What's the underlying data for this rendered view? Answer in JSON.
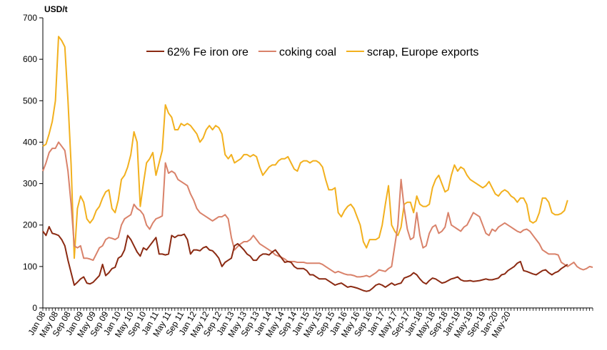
{
  "chart_data": {
    "type": "line",
    "unit_label": "USD/t",
    "ylim": [
      0,
      700
    ],
    "yticks": [
      0,
      100,
      200,
      300,
      400,
      500,
      600,
      700
    ],
    "grid": false,
    "legend_position": "top-center",
    "x_start": "Jan 08",
    "x_tick_labels": [
      "Jan 08",
      "May 08",
      "Sep 08",
      "Jan 09",
      "May 09",
      "Sep 09",
      "Jan 10",
      "May 10",
      "Sep 10",
      "Jan 11",
      "May 11",
      "Sep 11",
      "Jan 12",
      "May 12",
      "Sep 12",
      "Jan 13",
      "May 13",
      "Sep 13",
      "Jan 14",
      "May 14",
      "Sep 14",
      "Jan 15",
      "May 15",
      "Sep 15",
      "Jan 16",
      "May 16",
      "Sep 16",
      "Jan 17",
      "May-17",
      "Sep-17",
      "Jan-18",
      "May-18",
      "Sep-18",
      "Jan-19",
      "May-19",
      "Sep-19",
      "Jan-20",
      "May-20"
    ],
    "series": [
      {
        "name": "62% Fe iron ore",
        "color": "#8b2a12",
        "values": [
          185,
          175,
          196,
          180,
          178,
          175,
          165,
          150,
          115,
          85,
          55,
          62,
          70,
          75,
          60,
          58,
          62,
          70,
          78,
          105,
          78,
          85,
          95,
          98,
          120,
          125,
          140,
          175,
          165,
          150,
          135,
          125,
          145,
          140,
          150,
          160,
          170,
          130,
          130,
          128,
          130,
          175,
          170,
          175,
          175,
          178,
          165,
          130,
          140,
          140,
          138,
          145,
          148,
          140,
          138,
          130,
          120,
          100,
          110,
          115,
          120,
          150,
          155,
          148,
          140,
          130,
          125,
          115,
          115,
          125,
          130,
          130,
          128,
          135,
          140,
          130,
          120,
          110,
          112,
          110,
          100,
          95,
          95,
          95,
          90,
          80,
          80,
          75,
          70,
          70,
          70,
          65,
          60,
          55,
          58,
          60,
          55,
          50,
          52,
          50,
          48,
          45,
          42,
          40,
          42,
          48,
          55,
          58,
          55,
          50,
          55,
          60,
          55,
          58,
          60,
          72,
          75,
          78,
          85,
          80,
          70,
          62,
          58,
          66,
          72,
          70,
          65,
          60,
          62,
          66,
          70,
          72,
          75,
          68,
          65,
          65,
          66,
          64,
          65,
          66,
          68,
          70,
          68,
          68,
          70,
          72,
          80,
          82,
          90,
          95,
          100,
          108,
          112,
          90,
          88,
          85,
          82,
          80,
          85,
          90,
          92,
          85,
          80,
          85,
          88,
          95,
          100,
          105
        ]
      },
      {
        "name": "coking coal",
        "color": "#d9826a",
        "values": [
          330,
          350,
          375,
          385,
          385,
          400,
          390,
          380,
          330,
          250,
          150,
          145,
          150,
          120,
          120,
          118,
          115,
          130,
          145,
          150,
          165,
          170,
          168,
          165,
          170,
          200,
          215,
          220,
          225,
          250,
          240,
          235,
          225,
          200,
          190,
          205,
          215,
          218,
          222,
          350,
          325,
          330,
          325,
          310,
          305,
          300,
          295,
          275,
          260,
          240,
          230,
          225,
          220,
          215,
          210,
          215,
          220,
          220,
          225,
          215,
          170,
          140,
          148,
          155,
          160,
          160,
          165,
          175,
          165,
          155,
          150,
          145,
          140,
          135,
          128,
          125,
          122,
          118,
          112,
          112,
          112,
          110,
          110,
          110,
          108,
          108,
          108,
          108,
          108,
          105,
          100,
          95,
          90,
          85,
          88,
          85,
          82,
          80,
          80,
          78,
          75,
          75,
          76,
          78,
          75,
          80,
          85,
          92,
          90,
          88,
          95,
          100,
          150,
          200,
          310,
          240,
          190,
          165,
          170,
          230,
          175,
          145,
          150,
          180,
          195,
          200,
          180,
          185,
          195,
          230,
          200,
          195,
          190,
          185,
          195,
          200,
          215,
          230,
          225,
          220,
          200,
          180,
          175,
          190,
          185,
          195,
          200,
          205,
          200,
          195,
          190,
          185,
          182,
          188,
          190,
          185,
          175,
          165,
          155,
          140,
          135,
          130,
          130,
          130,
          128,
          110,
          105,
          100,
          105,
          110,
          100,
          95,
          92,
          95,
          100,
          98
        ]
      },
      {
        "name": "scrap, Europe exports",
        "color": "#f2b01e",
        "values": [
          390,
          395,
          420,
          450,
          500,
          655,
          645,
          630,
          500,
          345,
          120,
          240,
          270,
          255,
          215,
          205,
          215,
          235,
          245,
          265,
          280,
          285,
          240,
          230,
          260,
          310,
          320,
          340,
          370,
          425,
          400,
          245,
          300,
          350,
          360,
          375,
          320,
          350,
          380,
          490,
          470,
          460,
          430,
          430,
          445,
          440,
          445,
          440,
          430,
          420,
          400,
          410,
          430,
          440,
          430,
          440,
          435,
          420,
          370,
          360,
          370,
          350,
          355,
          360,
          370,
          370,
          365,
          370,
          365,
          340,
          320,
          330,
          340,
          345,
          345,
          355,
          360,
          360,
          365,
          350,
          335,
          330,
          350,
          355,
          355,
          350,
          355,
          355,
          350,
          340,
          310,
          285,
          285,
          290,
          230,
          220,
          235,
          245,
          250,
          240,
          220,
          200,
          160,
          145,
          165,
          165,
          165,
          170,
          200,
          250,
          295,
          200,
          185,
          175,
          195,
          250,
          255,
          255,
          230,
          270,
          250,
          245,
          245,
          250,
          290,
          310,
          320,
          300,
          280,
          285,
          320,
          345,
          330,
          340,
          335,
          320,
          310,
          305,
          300,
          295,
          290,
          295,
          305,
          290,
          275,
          270,
          280,
          285,
          280,
          270,
          265,
          255,
          265,
          265,
          250,
          210,
          205,
          210,
          230,
          265,
          265,
          255,
          230,
          225,
          225,
          228,
          235,
          260
        ]
      }
    ]
  }
}
